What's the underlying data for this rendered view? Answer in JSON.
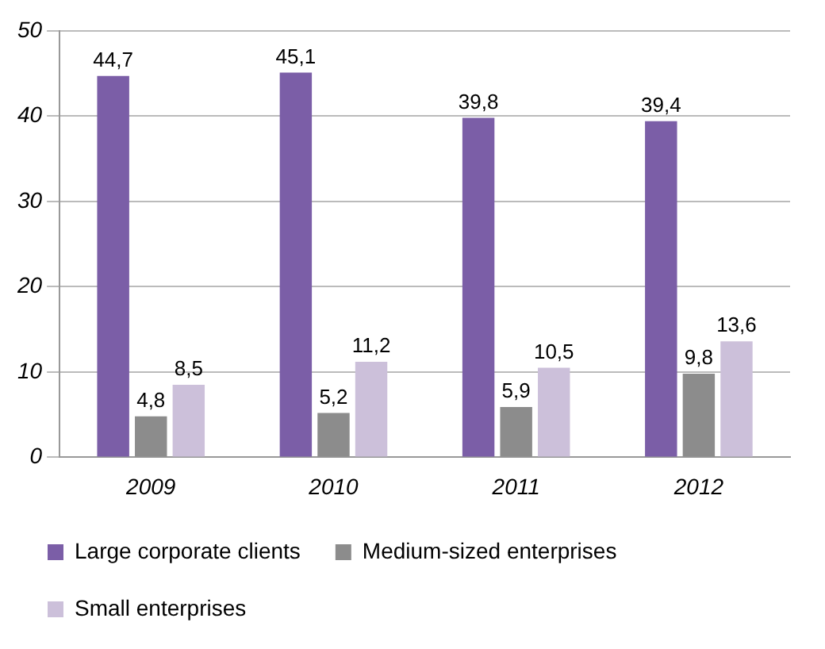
{
  "chart_data": {
    "type": "bar",
    "categories": [
      "2009",
      "2010",
      "2011",
      "2012"
    ],
    "series": [
      {
        "name": "Large corporate clients",
        "color": "#7b5ea7",
        "values": [
          44.7,
          45.1,
          39.8,
          39.4
        ],
        "value_labels": [
          "44,7",
          "45,1",
          "39,8",
          "39,4"
        ]
      },
      {
        "name": "Medium-sized enterprises",
        "color": "#8c8c8c",
        "values": [
          4.8,
          5.2,
          5.9,
          9.8
        ],
        "value_labels": [
          "4,8",
          "5,2",
          "5,9",
          "9,8"
        ]
      },
      {
        "name": "Small enterprises",
        "color": "#ccc0da",
        "values": [
          8.5,
          11.2,
          10.5,
          13.6
        ],
        "value_labels": [
          "8,5",
          "11,2",
          "10,5",
          "13,6"
        ]
      }
    ],
    "ylim": [
      0,
      50
    ],
    "yticks": [
      0,
      10,
      20,
      30,
      40,
      50
    ],
    "grid": "y",
    "legend": "bottom"
  }
}
